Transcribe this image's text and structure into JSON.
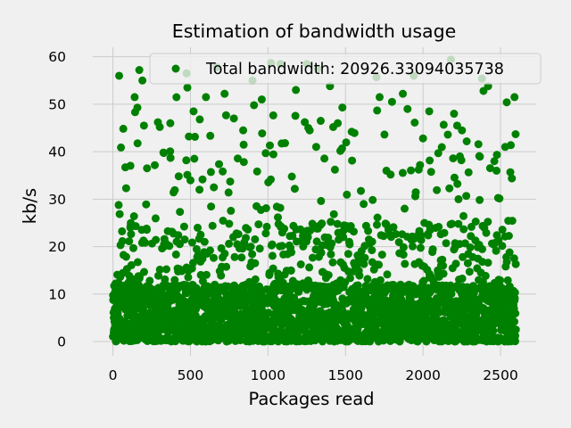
{
  "chart_data": {
    "type": "scatter",
    "title": "Estimation of bandwidth usage",
    "xlabel": "Packages read",
    "ylabel": "kb/s",
    "legend": {
      "label": "Total bandwidth: 20926.33094035738",
      "placement": "top-right"
    },
    "xlim": [
      -130,
      2730
    ],
    "ylim": [
      -3,
      62
    ],
    "xticks": [
      0,
      500,
      1000,
      1500,
      2000,
      2500
    ],
    "yticks": [
      0,
      10,
      20,
      30,
      40,
      50,
      60
    ],
    "grid": true,
    "marker_color": "#008000",
    "series": [
      {
        "num_points": 2600,
        "x_start": 0,
        "x_end": 2599,
        "description": "dense cloud of values mostly between 0 and 12 kb/s, sparser points up to about 59 kb/s",
        "highlighted_points": [
          {
            "x": 40,
            "y": 56.0
          },
          {
            "x": 170,
            "y": 57.2
          },
          {
            "x": 190,
            "y": 55.0
          },
          {
            "x": 140,
            "y": 51.5
          },
          {
            "x": 200,
            "y": 45.5
          },
          {
            "x": 290,
            "y": 46.2
          },
          {
            "x": 370,
            "y": 46.0
          },
          {
            "x": 80,
            "y": 36.7
          },
          {
            "x": 220,
            "y": 36.5
          },
          {
            "x": 85,
            "y": 32.3
          },
          {
            "x": 475,
            "y": 56.5
          },
          {
            "x": 480,
            "y": 53.5
          },
          {
            "x": 520,
            "y": 48.5
          },
          {
            "x": 560,
            "y": 46.8
          },
          {
            "x": 600,
            "y": 51.5
          },
          {
            "x": 490,
            "y": 43.2
          },
          {
            "x": 720,
            "y": 52.2
          },
          {
            "x": 670,
            "y": 57.8
          },
          {
            "x": 780,
            "y": 47.0
          },
          {
            "x": 840,
            "y": 44.5
          },
          {
            "x": 900,
            "y": 55.0
          },
          {
            "x": 910,
            "y": 49.8
          },
          {
            "x": 960,
            "y": 51.0
          },
          {
            "x": 1020,
            "y": 58.7
          },
          {
            "x": 1080,
            "y": 58.5
          },
          {
            "x": 1110,
            "y": 41.8
          },
          {
            "x": 1180,
            "y": 53.0
          },
          {
            "x": 1250,
            "y": 58.5
          },
          {
            "x": 1260,
            "y": 45.0
          },
          {
            "x": 1320,
            "y": 57.5
          },
          {
            "x": 1340,
            "y": 46.5
          },
          {
            "x": 1400,
            "y": 53.8
          },
          {
            "x": 1450,
            "y": 46.0
          },
          {
            "x": 1480,
            "y": 49.3
          },
          {
            "x": 1540,
            "y": 44.2
          },
          {
            "x": 1720,
            "y": 51.5
          },
          {
            "x": 1700,
            "y": 55.7
          },
          {
            "x": 1800,
            "y": 50.5
          },
          {
            "x": 1870,
            "y": 52.2
          },
          {
            "x": 1900,
            "y": 49.0
          },
          {
            "x": 1940,
            "y": 56.0
          },
          {
            "x": 2000,
            "y": 42.8
          },
          {
            "x": 2040,
            "y": 48.5
          },
          {
            "x": 2180,
            "y": 59.4
          },
          {
            "x": 2200,
            "y": 48.0
          },
          {
            "x": 2220,
            "y": 45.5
          },
          {
            "x": 2160,
            "y": 43.6
          },
          {
            "x": 2380,
            "y": 55.4
          },
          {
            "x": 2390,
            "y": 52.8
          },
          {
            "x": 2420,
            "y": 53.8
          },
          {
            "x": 2540,
            "y": 50.4
          },
          {
            "x": 2590,
            "y": 51.5
          },
          {
            "x": 2530,
            "y": 41.0
          },
          {
            "x": 2460,
            "y": 38.0
          }
        ]
      }
    ]
  }
}
